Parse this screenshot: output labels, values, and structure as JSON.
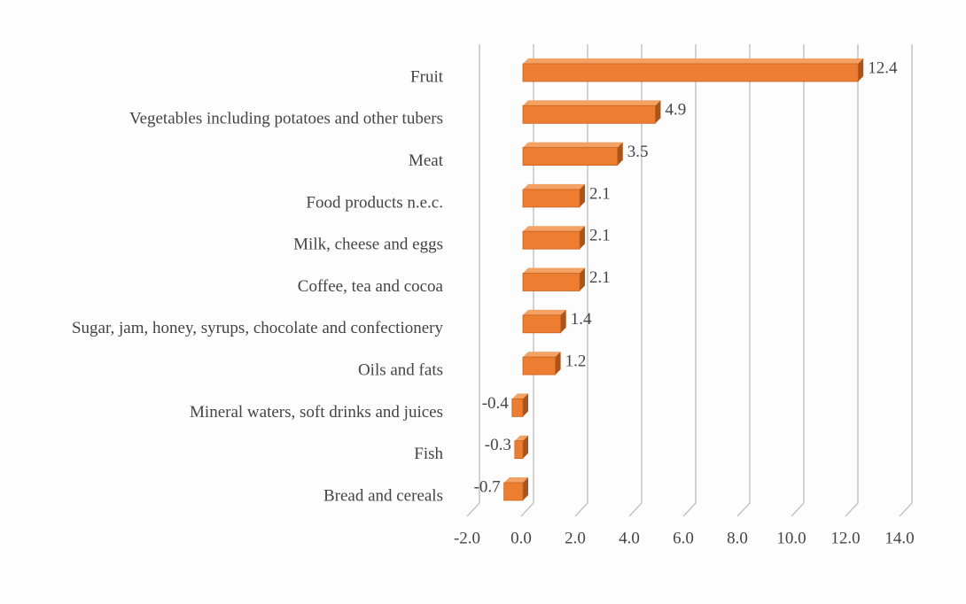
{
  "chart_data": {
    "type": "bar",
    "orientation": "horizontal",
    "categories": [
      "Fruit",
      "Vegetables including potatoes and other tubers",
      "Meat",
      "Food products n.e.c.",
      "Milk, cheese and eggs",
      "Coffee, tea and cocoa",
      "Sugar, jam, honey, syrups, chocolate and confectionery",
      "Oils and fats",
      "Mineral waters, soft drinks and juices",
      "Fish",
      "Bread and cereals"
    ],
    "values": [
      12.4,
      4.9,
      3.5,
      2.1,
      2.1,
      2.1,
      1.4,
      1.2,
      -0.4,
      -0.3,
      -0.7
    ],
    "color": "#ed7d31",
    "xlim": [
      -2,
      14
    ],
    "xticks": [
      {
        "value": -2,
        "label": "-2.0"
      },
      {
        "value": 0,
        "label": "0.0"
      },
      {
        "value": 2,
        "label": "2.0"
      },
      {
        "value": 4,
        "label": "4.0"
      },
      {
        "value": 6,
        "label": "6.0"
      },
      {
        "value": 8,
        "label": "8.0"
      },
      {
        "value": 10,
        "label": "10.0"
      },
      {
        "value": 12,
        "label": "12.0"
      },
      {
        "value": 14,
        "label": "14.0"
      }
    ],
    "grid": true
  }
}
